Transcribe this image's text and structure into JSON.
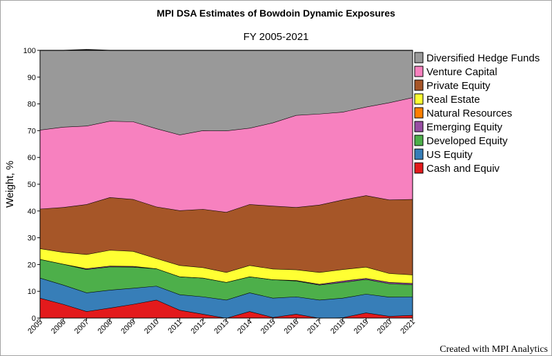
{
  "chart_data": {
    "type": "area",
    "title": "MPI DSA Estimates of Bowdoin Dynamic Exposures",
    "subtitle": "FY 2005-2021",
    "ylabel": "Weight, %",
    "xlabel": "",
    "ylim": [
      0,
      100
    ],
    "yticks": [
      "0",
      "10",
      "20",
      "30",
      "40",
      "50",
      "60",
      "70",
      "80",
      "90",
      "100"
    ],
    "x": [
      "2005",
      "2006",
      "2007",
      "2008",
      "2009",
      "2010",
      "2011",
      "2012",
      "2013",
      "2014",
      "2015",
      "2016",
      "2017",
      "2018",
      "2019",
      "2020",
      "2021"
    ],
    "stacked": true,
    "legend_position": "right",
    "series": [
      {
        "name": "Cash and Equiv",
        "color": "#e31a1c",
        "values": [
          7.5,
          5.2,
          2.5,
          3.8,
          5.2,
          6.8,
          3.0,
          1.5,
          0.0,
          2.5,
          0.3,
          1.5,
          0.0,
          0.2,
          2.0,
          0.7,
          1.1
        ]
      },
      {
        "name": "US Equity",
        "color": "#377eb8",
        "values": [
          7.5,
          7.2,
          7.0,
          6.7,
          6.0,
          5.2,
          5.8,
          6.5,
          6.8,
          7.0,
          7.2,
          6.5,
          6.8,
          7.3,
          7.0,
          7.2,
          6.9
        ]
      },
      {
        "name": "Developed Equity",
        "color": "#4daf4a",
        "values": [
          7.0,
          7.8,
          8.7,
          8.7,
          7.9,
          6.5,
          6.7,
          7.0,
          6.6,
          6.0,
          6.9,
          5.9,
          5.6,
          5.9,
          5.5,
          5.0,
          4.5
        ]
      },
      {
        "name": "Emerging Equity",
        "color": "#984ea3",
        "values": [
          0.0,
          0.0,
          0.3,
          0.3,
          0.3,
          0.0,
          0.0,
          0.0,
          0.0,
          0.0,
          0.0,
          0.2,
          0.3,
          0.5,
          0.4,
          0.5,
          0.5
        ]
      },
      {
        "name": "Natural Resources",
        "color": "#ff7f00",
        "values": [
          0.0,
          0.0,
          0.0,
          0.0,
          0.0,
          0.0,
          0.0,
          0.0,
          0.0,
          0.0,
          0.0,
          0.0,
          0.0,
          0.0,
          0.0,
          0.0,
          0.0
        ]
      },
      {
        "name": "Real Estate",
        "color": "#ffff33",
        "values": [
          4.0,
          4.4,
          5.3,
          5.9,
          5.6,
          3.8,
          4.2,
          3.9,
          3.7,
          4.2,
          4.0,
          4.0,
          4.4,
          4.3,
          4.2,
          3.3,
          3.2
        ]
      },
      {
        "name": "Private Equity",
        "color": "#a65628",
        "values": [
          14.8,
          16.8,
          18.7,
          19.7,
          19.4,
          19.3,
          20.5,
          21.8,
          22.5,
          22.8,
          23.5,
          23.3,
          25.2,
          26.0,
          26.7,
          27.5,
          28.2
        ]
      },
      {
        "name": "Venture Capital",
        "color": "#f781bf",
        "values": [
          29.5,
          30.0,
          29.3,
          28.5,
          29.0,
          29.2,
          28.3,
          29.4,
          30.4,
          28.5,
          31.1,
          34.4,
          34.0,
          32.8,
          33.1,
          36.3,
          38.0
        ]
      },
      {
        "name": "Diversified Hedge Funds",
        "color": "#999999",
        "values": [
          29.7,
          28.6,
          28.5,
          26.4,
          26.6,
          29.2,
          31.5,
          29.9,
          30.0,
          29.0,
          27.0,
          24.2,
          23.7,
          23.0,
          21.1,
          19.5,
          17.6
        ]
      }
    ]
  },
  "credit": "Created with MPI Analytics"
}
